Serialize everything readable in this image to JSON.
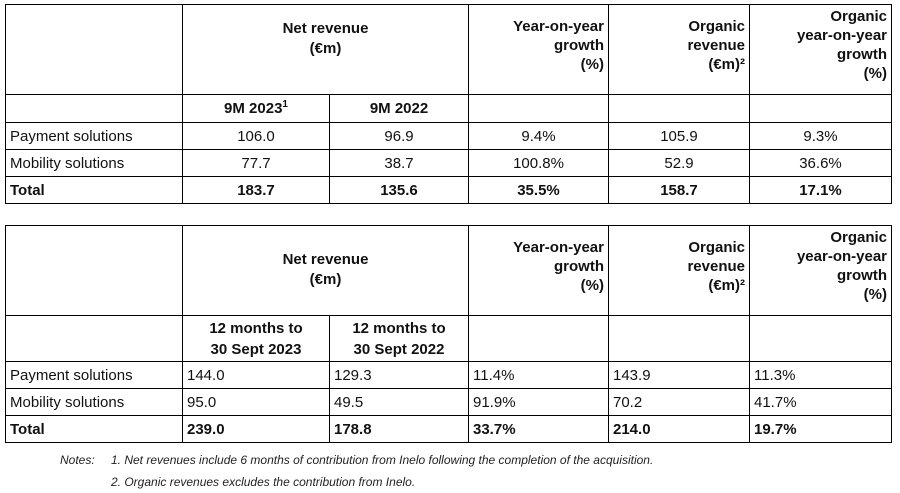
{
  "headers": {
    "net_revenue": "Net revenue",
    "eur_m": "(€m)",
    "yoy_line1": "Year-on-year",
    "yoy_line2": "growth",
    "pct": "(%)",
    "org_line1": "Organic",
    "org_line2": "revenue",
    "org_line3": "(€m)²",
    "orgyoy_line1": "Organic",
    "orgyoy_line2": "year-on-year",
    "orgyoy_line3": "growth",
    "orgyoy_line4": "(%)"
  },
  "table1": {
    "sub_col1": "9M 2023",
    "sub_col1_sup": "1",
    "sub_col2": "9M 2022",
    "rows": [
      {
        "label": "Payment solutions",
        "v1": "106.0",
        "v2": "96.9",
        "yoy": "9.4%",
        "org": "105.9",
        "orgyoy": "9.3%"
      },
      {
        "label": "Mobility solutions",
        "v1": "77.7",
        "v2": "38.7",
        "yoy": "100.8%",
        "org": "52.9",
        "orgyoy": "36.6%"
      },
      {
        "label": "Total",
        "v1": "183.7",
        "v2": "135.6",
        "yoy": "35.5%",
        "org": "158.7",
        "orgyoy": "17.1%"
      }
    ]
  },
  "table2": {
    "sub_col1_a": "12 months to",
    "sub_col1_b": "30 Sept 2023",
    "sub_col2_a": "12 months to",
    "sub_col2_b": "30 Sept 2022",
    "rows": [
      {
        "label": "Payment solutions",
        "v1": "144.0",
        "v2": "129.3",
        "yoy": "11.4%",
        "org": "143.9",
        "orgyoy": "11.3%"
      },
      {
        "label": "Mobility solutions",
        "v1": "95.0",
        "v2": "49.5",
        "yoy": "91.9%",
        "org": "70.2",
        "orgyoy": "41.7%"
      },
      {
        "label": "Total",
        "v1": "239.0",
        "v2": "178.8",
        "yoy": "33.7%",
        "org": "214.0",
        "orgyoy": "19.7%"
      }
    ]
  },
  "notes": {
    "label": "Notes:",
    "note1": "1. Net revenues include 6 months of contribution from Inelo following the completion of the acquisition.",
    "note2": "2. Organic revenues excludes the contribution from Inelo."
  }
}
